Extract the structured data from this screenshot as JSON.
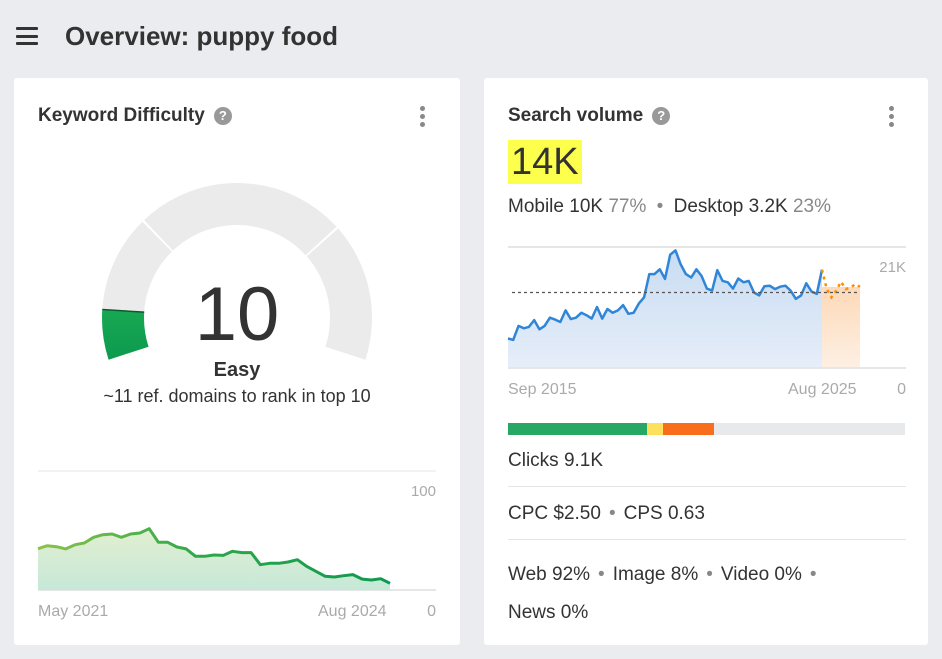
{
  "header": {
    "title": "Overview: puppy food",
    "menu_icon": "hamburger-icon"
  },
  "kd": {
    "title": "Keyword Difficulty",
    "help": "?",
    "value": "10",
    "label": "Easy",
    "subtitle": "~11 ref. domains to rank in top 10",
    "gauge_fraction": 0.1,
    "gauge_color": "#0c9a4f",
    "chart_data": {
      "type": "area",
      "x_start": "May 2021",
      "x_end": "Aug 2024",
      "y_max_label": "100",
      "y_min_label": "0",
      "ylim": [
        0,
        100
      ],
      "values": [
        34.7,
        37.2,
        36.4,
        34.5,
        38.1,
        39.5,
        44.3,
        46.5,
        47.1,
        44.3,
        47.1,
        47.9,
        51.5,
        40.1,
        40.1,
        36.1,
        34.5,
        28.3,
        28.3,
        29.4,
        29.1,
        32.5,
        31.4,
        31.4,
        21.3,
        22.4,
        22.4,
        23.5,
        25.5,
        19.9,
        15.7,
        11.5,
        10.9,
        12.0,
        12.9,
        9.2,
        8.4,
        9.5,
        5.6
      ],
      "colors": [
        "#8bc34a",
        "#0c9a4f"
      ]
    }
  },
  "sv": {
    "title": "Search volume",
    "help": "?",
    "value": "14K",
    "highlight": "#fdff4d",
    "mobile_label": "Mobile",
    "mobile_value": "10K",
    "mobile_pct": "77%",
    "desktop_label": "Desktop",
    "desktop_value": "3.2K",
    "desktop_pct": "23%",
    "chart_data": {
      "type": "area",
      "x_start": "Sep 2015",
      "x_end": "Aug 2025",
      "y_max_label": "21K",
      "y_min_label": "0",
      "ylim": [
        0,
        25000
      ],
      "average": 15600,
      "values": [
        6100,
        5800,
        8700,
        8200,
        8500,
        9900,
        8000,
        8700,
        10400,
        10000,
        9500,
        11900,
        10100,
        10400,
        11400,
        10900,
        10200,
        12600,
        10200,
        12200,
        11400,
        11900,
        13000,
        11200,
        11400,
        13300,
        14600,
        19400,
        19400,
        20400,
        18400,
        23400,
        24300,
        21400,
        19400,
        18700,
        20400,
        19000,
        16400,
        16000,
        20200,
        18000,
        17700,
        16400,
        18500,
        17700,
        18000,
        15600,
        15000,
        16900,
        17000,
        16300,
        16800,
        17000,
        16000,
        14300,
        15000,
        17500,
        15800,
        15300,
        20300
      ],
      "forecast": [
        20300,
        16300,
        14600,
        16000,
        17800,
        16300,
        16600,
        17300,
        16800
      ],
      "colors": {
        "line": "#2f86d8",
        "forecast": "#ff8c00"
      }
    },
    "clicks_bar": [
      {
        "pct": 35,
        "color": "#27a764"
      },
      {
        "pct": 4,
        "color": "#fde05d"
      },
      {
        "pct": 13,
        "color": "#f86e1a"
      }
    ],
    "clicks": "Clicks 9.1K",
    "cpc": "CPC $2.50",
    "cps": "CPS 0.63",
    "web": "Web 92%",
    "image": "Image 8%",
    "video": "Video 0%",
    "news": "News 0%"
  }
}
